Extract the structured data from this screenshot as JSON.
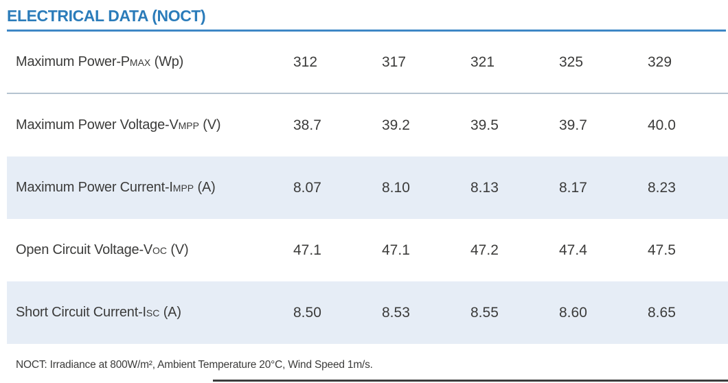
{
  "title": "ELECTRICAL DATA (NOCT)",
  "footnote": "NOCT: Irradiance at 800W/m², Ambient Temperature 20°C, Wind Speed 1m/s.",
  "colors": {
    "title_blue": "#2b7cba",
    "rule_blue": "#3e87c6",
    "shaded_row_bg": "#e6edf6",
    "row_separator": "#b5c3d0",
    "text": "#3b3b3a",
    "bottom_divider": "#3c3c3c"
  },
  "table": {
    "rows": [
      {
        "label": {
          "prefix": "Maximum Power-P",
          "sub": "MAX",
          "suffix": " (Wp)"
        },
        "values": [
          "312",
          "317",
          "321",
          "325",
          "329"
        ],
        "shaded": false
      },
      {
        "label": {
          "prefix": "Maximum Power Voltage-V",
          "sub": "MPP",
          "suffix": " (V)"
        },
        "values": [
          "38.7",
          "39.2",
          "39.5",
          "39.7",
          "40.0"
        ],
        "shaded": false
      },
      {
        "label": {
          "prefix": "Maximum Power Current-I",
          "sub": "MPP",
          "suffix": " (A)"
        },
        "values": [
          "8.07",
          "8.10",
          "8.13",
          "8.17",
          "8.23"
        ],
        "shaded": true
      },
      {
        "label": {
          "prefix": "Open Circuit Voltage-V",
          "sub": "OC",
          "suffix": " (V)"
        },
        "values": [
          "47.1",
          "47.1",
          "47.2",
          "47.4",
          "47.5"
        ],
        "shaded": false
      },
      {
        "label": {
          "prefix": "Short Circuit Current-I",
          "sub": "SC",
          "suffix": " (A)"
        },
        "values": [
          "8.50",
          "8.53",
          "8.55",
          "8.60",
          "8.65"
        ],
        "shaded": true
      }
    ]
  }
}
